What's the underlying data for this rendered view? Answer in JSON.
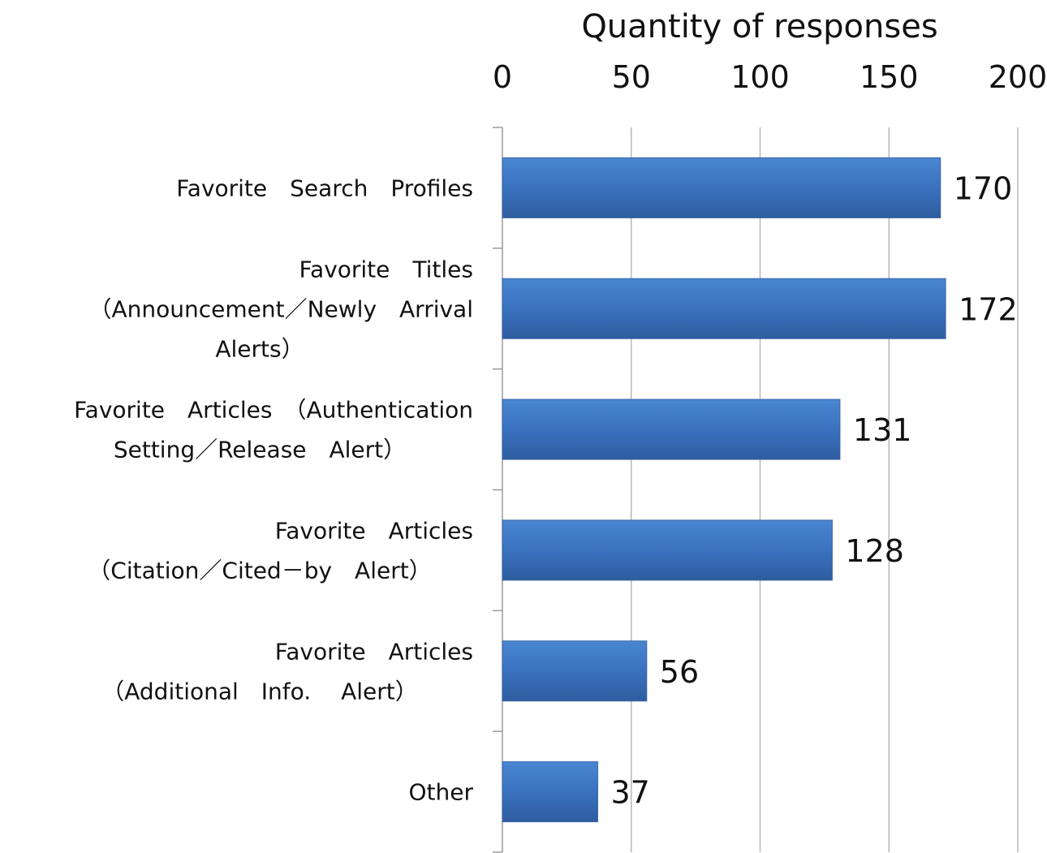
{
  "chart_data": {
    "type": "bar",
    "orientation": "horizontal",
    "xlabel": "Quantity of responses",
    "xlim": [
      0,
      200
    ],
    "xticks": [
      "0",
      "50",
      "100",
      "150",
      "200"
    ],
    "categories": [
      [
        "Favorite　Search　Profiles"
      ],
      [
        "Favorite　Titles",
        "（Announcement／Newly　Arrival",
        "Alerts）"
      ],
      [
        "Favorite　Articles　（Authentication",
        "Setting／Release　Alert）"
      ],
      [
        "Favorite　Articles",
        "（Citation／Cited－by　Alert）"
      ],
      [
        "Favorite　Articles",
        "（Additional　Info.　 Alert）"
      ],
      [
        "Other"
      ]
    ],
    "values": [
      170,
      172,
      131,
      128,
      56,
      37
    ],
    "grid": true,
    "bar_color": "#3a72c0"
  }
}
